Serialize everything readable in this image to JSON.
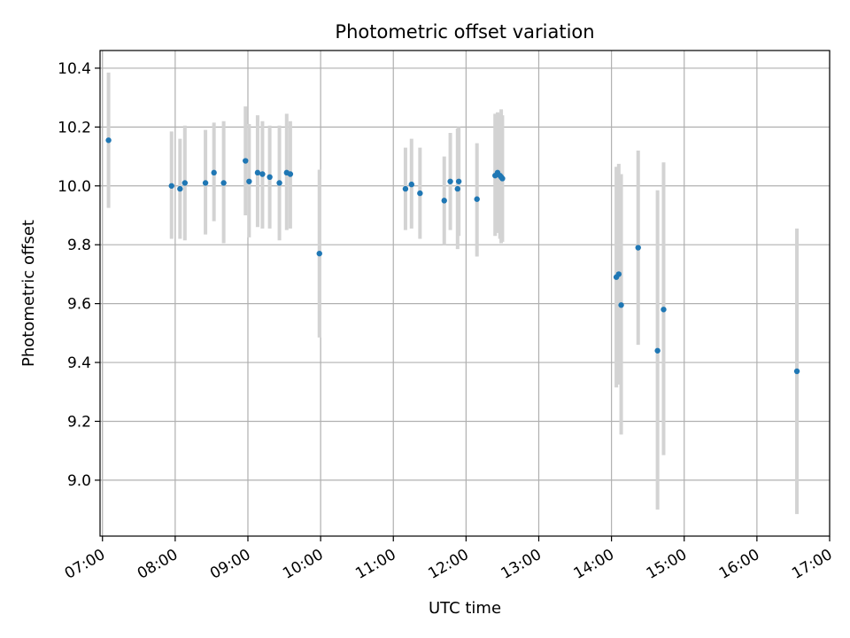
{
  "chart_data": {
    "type": "scatter",
    "title": "Photometric offset variation",
    "xlabel": "UTC time",
    "ylabel": "Photometric offset",
    "x_ticks": [
      "07:00",
      "08:00",
      "09:00",
      "10:00",
      "11:00",
      "12:00",
      "13:00",
      "14:00",
      "15:00",
      "16:00",
      "17:00"
    ],
    "y_ticks": [
      "9.0",
      "9.2",
      "9.4",
      "9.6",
      "9.8",
      "10.0",
      "10.2",
      "10.4"
    ],
    "xlim": [
      "06:58",
      "17:00"
    ],
    "ylim": [
      8.81,
      10.46
    ],
    "grid": true,
    "colors": {
      "point": "#1f77b4",
      "errorbar": "#d3d3d3",
      "grid": "#b0b0b0"
    },
    "points": [
      {
        "x": "07:05",
        "y": 10.155,
        "lo": 9.925,
        "hi": 10.385
      },
      {
        "x": "07:57",
        "y": 10.0,
        "lo": 9.82,
        "hi": 10.185
      },
      {
        "x": "08:04",
        "y": 9.99,
        "lo": 9.82,
        "hi": 10.16
      },
      {
        "x": "08:08",
        "y": 10.01,
        "lo": 9.815,
        "hi": 10.205
      },
      {
        "x": "08:25",
        "y": 10.01,
        "lo": 9.835,
        "hi": 10.19
      },
      {
        "x": "08:32",
        "y": 10.045,
        "lo": 9.88,
        "hi": 10.215
      },
      {
        "x": "08:40",
        "y": 10.01,
        "lo": 9.805,
        "hi": 10.22
      },
      {
        "x": "08:58",
        "y": 10.085,
        "lo": 9.9,
        "hi": 10.27
      },
      {
        "x": "09:01",
        "y": 10.015,
        "lo": 9.825,
        "hi": 10.21
      },
      {
        "x": "09:08",
        "y": 10.045,
        "lo": 9.86,
        "hi": 10.24
      },
      {
        "x": "09:12",
        "y": 10.04,
        "lo": 9.855,
        "hi": 10.22
      },
      {
        "x": "09:18",
        "y": 10.03,
        "lo": 9.855,
        "hi": 10.205
      },
      {
        "x": "09:26",
        "y": 10.01,
        "lo": 9.815,
        "hi": 10.205
      },
      {
        "x": "09:32",
        "y": 10.045,
        "lo": 9.85,
        "hi": 10.245
      },
      {
        "x": "09:35",
        "y": 10.04,
        "lo": 9.855,
        "hi": 10.22
      },
      {
        "x": "09:59",
        "y": 9.77,
        "lo": 9.485,
        "hi": 10.055
      },
      {
        "x": "11:10",
        "y": 9.99,
        "lo": 9.85,
        "hi": 10.13
      },
      {
        "x": "11:15",
        "y": 10.005,
        "lo": 9.855,
        "hi": 10.16
      },
      {
        "x": "11:22",
        "y": 9.975,
        "lo": 9.82,
        "hi": 10.13
      },
      {
        "x": "11:42",
        "y": 9.95,
        "lo": 9.8,
        "hi": 10.1
      },
      {
        "x": "11:47",
        "y": 10.015,
        "lo": 9.85,
        "hi": 10.18
      },
      {
        "x": "11:53",
        "y": 9.99,
        "lo": 9.785,
        "hi": 10.195
      },
      {
        "x": "11:54",
        "y": 10.015,
        "lo": 9.83,
        "hi": 10.2
      },
      {
        "x": "12:09",
        "y": 9.955,
        "lo": 9.76,
        "hi": 10.145
      },
      {
        "x": "12:24",
        "y": 10.035,
        "lo": 9.83,
        "hi": 10.245
      },
      {
        "x": "12:26",
        "y": 10.045,
        "lo": 9.84,
        "hi": 10.25
      },
      {
        "x": "12:28",
        "y": 10.035,
        "lo": 9.82,
        "hi": 10.245
      },
      {
        "x": "12:29",
        "y": 10.03,
        "lo": 9.805,
        "hi": 10.26
      },
      {
        "x": "12:30",
        "y": 10.025,
        "lo": 9.81,
        "hi": 10.24
      },
      {
        "x": "14:04",
        "y": 9.69,
        "lo": 9.315,
        "hi": 10.065
      },
      {
        "x": "14:06",
        "y": 9.7,
        "lo": 9.325,
        "hi": 10.075
      },
      {
        "x": "14:08",
        "y": 9.595,
        "lo": 9.155,
        "hi": 10.04
      },
      {
        "x": "14:22",
        "y": 9.79,
        "lo": 9.46,
        "hi": 10.12
      },
      {
        "x": "14:38",
        "y": 9.44,
        "lo": 8.9,
        "hi": 9.985
      },
      {
        "x": "14:43",
        "y": 9.58,
        "lo": 9.085,
        "hi": 10.08
      },
      {
        "x": "16:33",
        "y": 9.37,
        "lo": 8.885,
        "hi": 9.855
      }
    ]
  }
}
